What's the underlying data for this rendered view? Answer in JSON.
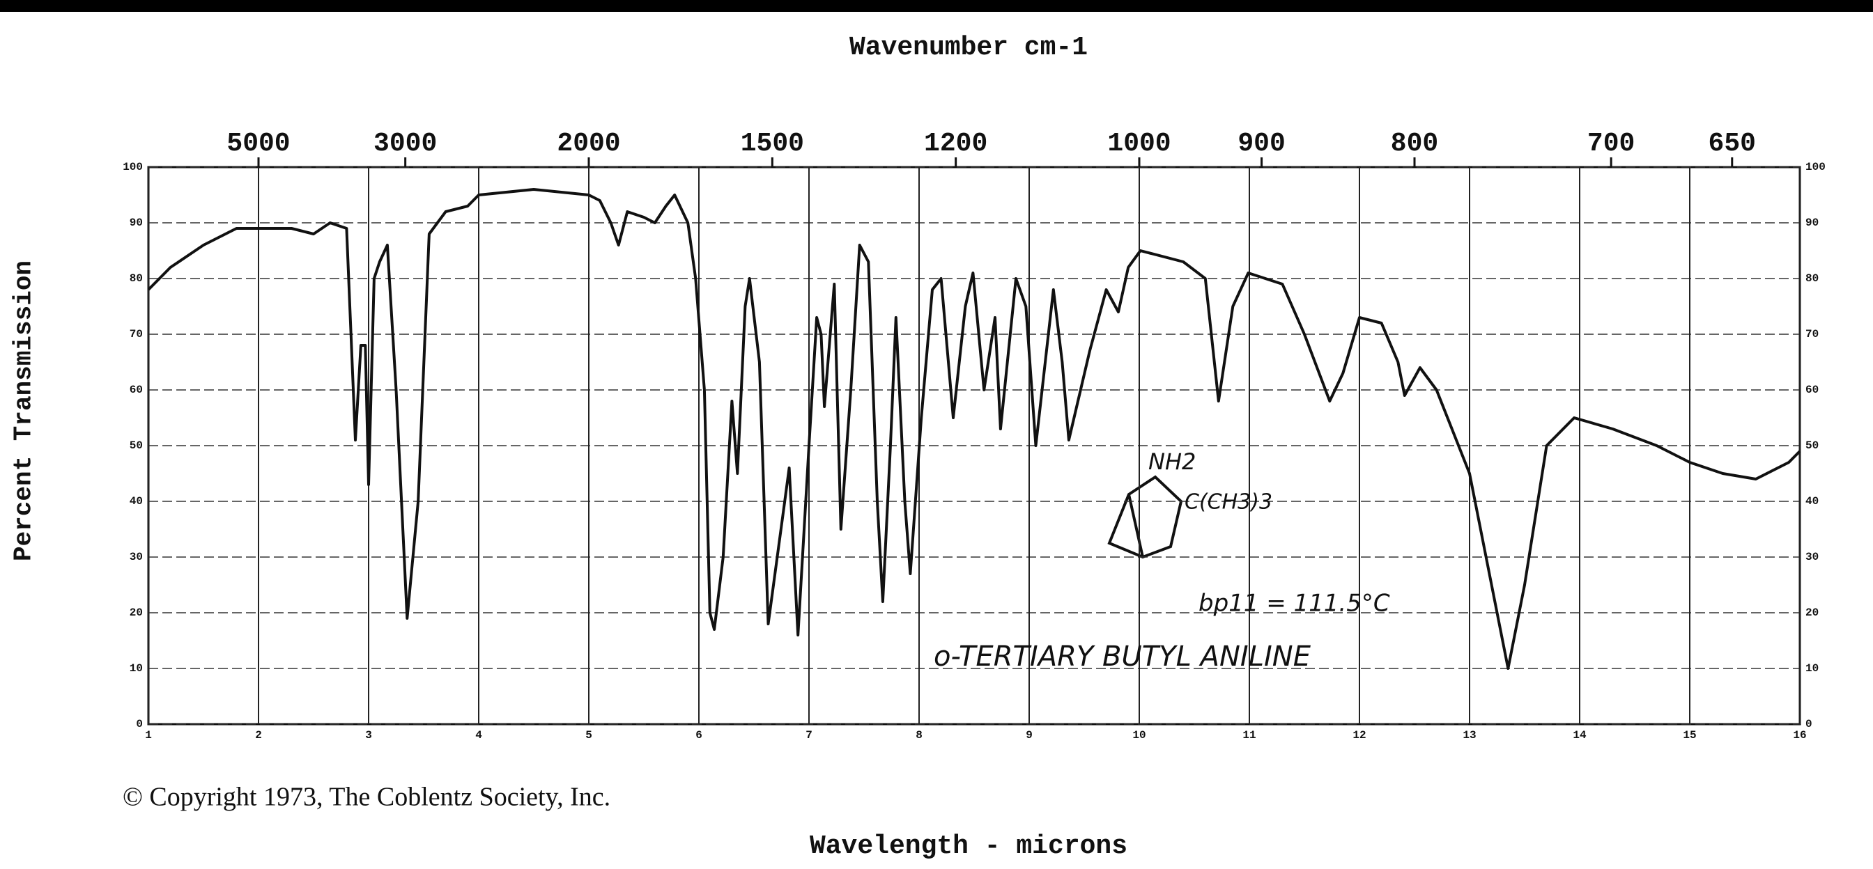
{
  "chart_data": {
    "type": "line",
    "title": "Wavenumber cm-1",
    "x_label": "Wavelength - microns",
    "y_label": "Percent Transmission",
    "copyright": "© Copyright 1973, The Coblentz Society, Inc.",
    "annotations": [
      "o-TERTIARY BUTYL ANILINE",
      "bp11 = 111.5°C",
      "NH2",
      "C(CH3)3"
    ],
    "xlim": [
      1,
      16
    ],
    "xticks": [
      1,
      2,
      3,
      4,
      5,
      6,
      7,
      8,
      9,
      10,
      11,
      12,
      13,
      14,
      15,
      16
    ],
    "x2ticks": [
      5000,
      3000,
      2000,
      1500,
      1200,
      1000,
      900,
      800,
      700,
      650
    ],
    "ylim": [
      0,
      100
    ],
    "yticks": [
      0,
      10,
      20,
      30,
      40,
      50,
      60,
      70,
      80,
      90,
      100
    ],
    "grid": true,
    "x": [
      1.0,
      1.2,
      1.5,
      1.8,
      2.0,
      2.3,
      2.5,
      2.65,
      2.8,
      2.88,
      2.93,
      2.97,
      3.0,
      3.05,
      3.1,
      3.17,
      3.25,
      3.35,
      3.45,
      3.55,
      3.7,
      3.9,
      4.0,
      4.5,
      5.0,
      5.1,
      5.2,
      5.27,
      5.35,
      5.5,
      5.6,
      5.7,
      5.78,
      5.9,
      5.97,
      6.05,
      6.1,
      6.14,
      6.22,
      6.3,
      6.35,
      6.42,
      6.46,
      6.55,
      6.63,
      6.78,
      6.82,
      6.9,
      7.0,
      7.07,
      7.11,
      7.14,
      7.23,
      7.29,
      7.38,
      7.46,
      7.54,
      7.62,
      7.67,
      7.74,
      7.79,
      7.87,
      7.92,
      8.02,
      8.12,
      8.2,
      8.31,
      8.42,
      8.49,
      8.59,
      8.69,
      8.74,
      8.88,
      8.97,
      9.06,
      9.22,
      9.3,
      9.36,
      9.55,
      9.7,
      9.81,
      9.9,
      10.01,
      10.4,
      10.6,
      10.72,
      10.85,
      10.99,
      11.3,
      11.5,
      11.73,
      11.85,
      12.0,
      12.2,
      12.35,
      12.41,
      12.55,
      12.7,
      13.0,
      13.2,
      13.35,
      13.5,
      13.7,
      13.95,
      14.3,
      14.7,
      15.0,
      15.3,
      15.6,
      15.9,
      16.0
    ],
    "series": [
      {
        "color": "#111111",
        "values": [
          78,
          82,
          86,
          89,
          89,
          89,
          88,
          90,
          89,
          51,
          68,
          68,
          43,
          80,
          83,
          86,
          60,
          19,
          40,
          88,
          92,
          93,
          95,
          96,
          95,
          94,
          90,
          86,
          92,
          91,
          90,
          93,
          95,
          90,
          80,
          60,
          20,
          17,
          30,
          58,
          45,
          75,
          80,
          65,
          18,
          40,
          46,
          16,
          50,
          73,
          70,
          57,
          79,
          35,
          60,
          86,
          83,
          40,
          22,
          50,
          73,
          40,
          27,
          55,
          78,
          80,
          55,
          75,
          81,
          60,
          73,
          53,
          80,
          75,
          50,
          78,
          65,
          51,
          67,
          78,
          74,
          82,
          85,
          83,
          80,
          58,
          75,
          81,
          79,
          70,
          58,
          63,
          73,
          72,
          65,
          59,
          64,
          60,
          45,
          25,
          10,
          25,
          50,
          55,
          53,
          50,
          47,
          45,
          44,
          47,
          49
        ]
      }
    ]
  }
}
